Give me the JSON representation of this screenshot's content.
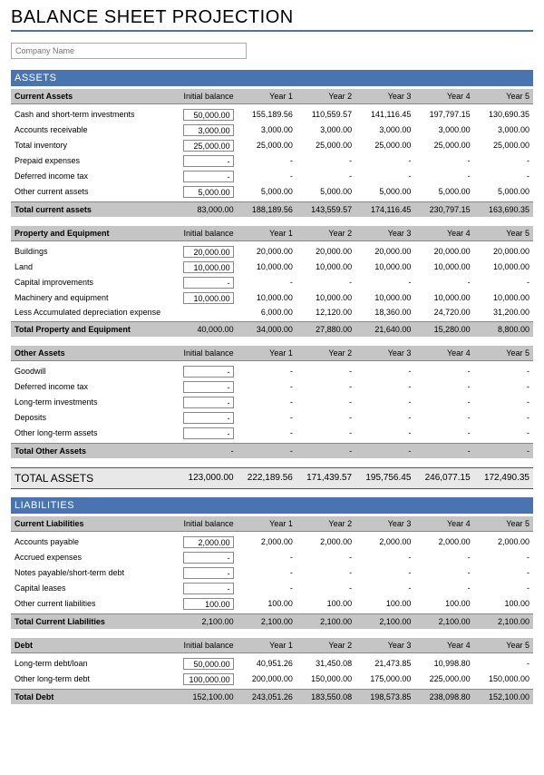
{
  "title": "BALANCE SHEET PROJECTION",
  "company_placeholder": "Company Name",
  "columns": [
    "Initial balance",
    "Year 1",
    "Year 2",
    "Year 3",
    "Year 4",
    "Year 5"
  ],
  "colors": {
    "accent": "#4a74b0",
    "header_bg": "#c5c5c5",
    "grand_bg": "#e8e8e8",
    "border": "#888888"
  },
  "sections": [
    {
      "major": "ASSETS",
      "groups": [
        {
          "header": "Current Assets",
          "rows": [
            {
              "label": "Cash and short-term investments",
              "input": "50,000.00",
              "vals": [
                "155,189.56",
                "110,559.57",
                "141,116.45",
                "197,797.15",
                "130,690.35"
              ]
            },
            {
              "label": "Accounts receivable",
              "input": "3,000.00",
              "vals": [
                "3,000.00",
                "3,000.00",
                "3,000.00",
                "3,000.00",
                "3,000.00"
              ]
            },
            {
              "label": "Total inventory",
              "input": "25,000.00",
              "vals": [
                "25,000.00",
                "25,000.00",
                "25,000.00",
                "25,000.00",
                "25,000.00"
              ]
            },
            {
              "label": "Prepaid expenses",
              "input": "-",
              "vals": [
                "-",
                "-",
                "-",
                "-",
                "-"
              ]
            },
            {
              "label": "Deferred income tax",
              "input": "-",
              "vals": [
                "-",
                "-",
                "-",
                "-",
                "-"
              ]
            },
            {
              "label": "Other current assets",
              "input": "5,000.00",
              "vals": [
                "5,000.00",
                "5,000.00",
                "5,000.00",
                "5,000.00",
                "5,000.00"
              ]
            }
          ],
          "total": {
            "label": "Total current assets",
            "vals": [
              "83,000.00",
              "188,189.56",
              "143,559.57",
              "174,116.45",
              "230,797.15",
              "163,690.35"
            ]
          }
        },
        {
          "header": "Property and Equipment",
          "rows": [
            {
              "label": "Buildings",
              "input": "20,000.00",
              "vals": [
                "20,000.00",
                "20,000.00",
                "20,000.00",
                "20,000.00",
                "20,000.00"
              ]
            },
            {
              "label": "Land",
              "input": "10,000.00",
              "vals": [
                "10,000.00",
                "10,000.00",
                "10,000.00",
                "10,000.00",
                "10,000.00"
              ]
            },
            {
              "label": "Capital improvements",
              "input": "-",
              "vals": [
                "-",
                "-",
                "-",
                "-",
                "-"
              ]
            },
            {
              "label": "Machinery and equipment",
              "input": "10,000.00",
              "vals": [
                "10,000.00",
                "10,000.00",
                "10,000.00",
                "10,000.00",
                "10,000.00"
              ]
            },
            {
              "label": "Less Accumulated depreciation expense",
              "input": null,
              "vals": [
                "6,000.00",
                "12,120.00",
                "18,360.00",
                "24,720.00",
                "31,200.00"
              ]
            }
          ],
          "total": {
            "label": "Total Property and Equipment",
            "vals": [
              "40,000.00",
              "34,000.00",
              "27,880.00",
              "21,640.00",
              "15,280.00",
              "8,800.00"
            ]
          }
        },
        {
          "header": "Other Assets",
          "rows": [
            {
              "label": "Goodwill",
              "input": "-",
              "vals": [
                "-",
                "-",
                "-",
                "-",
                "-"
              ]
            },
            {
              "label": "Deferred income tax",
              "input": "-",
              "vals": [
                "-",
                "-",
                "-",
                "-",
                "-"
              ]
            },
            {
              "label": "Long-term investments",
              "input": "-",
              "vals": [
                "-",
                "-",
                "-",
                "-",
                "-"
              ]
            },
            {
              "label": "Deposits",
              "input": "-",
              "vals": [
                "-",
                "-",
                "-",
                "-",
                "-"
              ]
            },
            {
              "label": "Other long-term assets",
              "input": "-",
              "vals": [
                "-",
                "-",
                "-",
                "-",
                "-"
              ]
            }
          ],
          "total": {
            "label": "Total Other Assets",
            "vals": [
              "-",
              "-",
              "-",
              "-",
              "-",
              "-"
            ]
          }
        }
      ],
      "grand_total": {
        "label": "TOTAL ASSETS",
        "vals": [
          "123,000.00",
          "222,189.56",
          "171,439.57",
          "195,756.45",
          "246,077.15",
          "172,490.35"
        ]
      }
    },
    {
      "major": "LIABILITIES",
      "groups": [
        {
          "header": "Current Liabilities",
          "rows": [
            {
              "label": "Accounts payable",
              "input": "2,000.00",
              "vals": [
                "2,000.00",
                "2,000.00",
                "2,000.00",
                "2,000.00",
                "2,000.00"
              ]
            },
            {
              "label": "Accrued expenses",
              "input": "-",
              "vals": [
                "-",
                "-",
                "-",
                "-",
                "-"
              ]
            },
            {
              "label": "Notes payable/short-term debt",
              "input": "-",
              "vals": [
                "-",
                "-",
                "-",
                "-",
                "-"
              ]
            },
            {
              "label": "Capital leases",
              "input": "-",
              "vals": [
                "-",
                "-",
                "-",
                "-",
                "-"
              ]
            },
            {
              "label": "Other current liabilities",
              "input": "100.00",
              "vals": [
                "100.00",
                "100.00",
                "100.00",
                "100.00",
                "100.00"
              ]
            }
          ],
          "total": {
            "label": "Total Current Liabilities",
            "vals": [
              "2,100.00",
              "2,100.00",
              "2,100.00",
              "2,100.00",
              "2,100.00",
              "2,100.00"
            ]
          }
        },
        {
          "header": "Debt",
          "rows": [
            {
              "label": "Long-term debt/loan",
              "input": "50,000.00",
              "vals": [
                "40,951.26",
                "31,450.08",
                "21,473.85",
                "10,998.80",
                "-"
              ]
            },
            {
              "label": "Other long-term debt",
              "input": "100,000.00",
              "vals": [
                "200,000.00",
                "150,000.00",
                "175,000.00",
                "225,000.00",
                "150,000.00"
              ]
            }
          ],
          "total": {
            "label": "Total Debt",
            "vals": [
              "152,100.00",
              "243,051.26",
              "183,550.08",
              "198,573.85",
              "238,098.80",
              "152,100.00"
            ]
          }
        }
      ]
    }
  ]
}
